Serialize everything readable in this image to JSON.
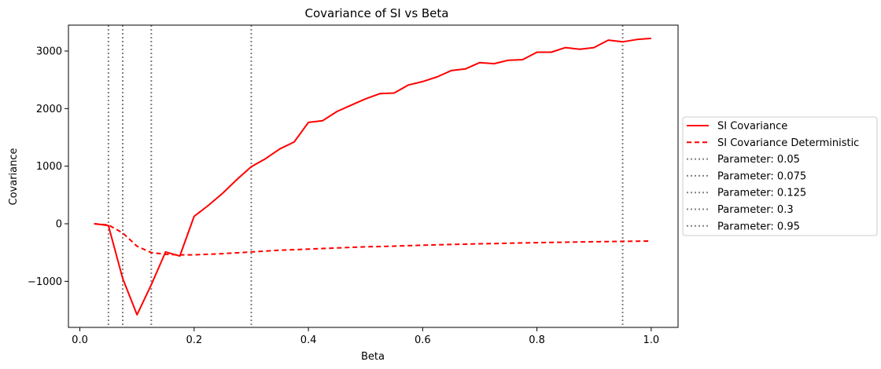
{
  "chart_data": {
    "type": "line",
    "title": "Covariance of SI vs Beta",
    "xlabel": "Beta",
    "ylabel": "Covariance",
    "xlim": [
      -0.02,
      1.047
    ],
    "ylim": [
      -1800,
      3450
    ],
    "xticks": [
      0.0,
      0.2,
      0.4,
      0.6,
      0.8,
      1.0
    ],
    "xtick_labels": [
      "0.0",
      "0.2",
      "0.4",
      "0.6",
      "0.8",
      "1.0"
    ],
    "yticks": [
      -1000,
      0,
      1000,
      2000,
      3000
    ],
    "ytick_labels": [
      "−1000",
      "0",
      "1000",
      "2000",
      "3000"
    ],
    "grid": false,
    "legend_position": "center-right outside",
    "series": [
      {
        "name": "SI Covariance",
        "style": "solid",
        "color": "#ff0000",
        "x": [
          0.025,
          0.05,
          0.075,
          0.1,
          0.125,
          0.15,
          0.175,
          0.2,
          0.225,
          0.25,
          0.275,
          0.3,
          0.325,
          0.35,
          0.375,
          0.4,
          0.425,
          0.45,
          0.475,
          0.5,
          0.525,
          0.55,
          0.575,
          0.6,
          0.625,
          0.65,
          0.675,
          0.7,
          0.725,
          0.75,
          0.775,
          0.8,
          0.825,
          0.85,
          0.875,
          0.9,
          0.925,
          0.95,
          0.975,
          1.0
        ],
        "values": [
          0,
          -30,
          -950,
          -1580,
          -1060,
          -490,
          -560,
          130,
          320,
          530,
          770,
          990,
          1130,
          1300,
          1420,
          1760,
          1790,
          1950,
          2060,
          2170,
          2260,
          2270,
          2410,
          2470,
          2550,
          2660,
          2690,
          2800,
          2780,
          2840,
          2850,
          2980,
          2980,
          3060,
          3030,
          3060,
          3190,
          3160,
          3200,
          3220
        ]
      },
      {
        "name": "SI Covariance Deterministic",
        "style": "dashed",
        "color": "#ff0000",
        "x": [
          0.025,
          0.05,
          0.075,
          0.1,
          0.125,
          0.15,
          0.175,
          0.2,
          0.225,
          0.25,
          0.275,
          0.3,
          0.325,
          0.35,
          0.375,
          0.4,
          0.425,
          0.45,
          0.475,
          0.5,
          0.525,
          0.55,
          0.575,
          0.6,
          0.625,
          0.65,
          0.675,
          0.7,
          0.725,
          0.75,
          0.775,
          0.8,
          0.825,
          0.85,
          0.875,
          0.9,
          0.925,
          0.95,
          0.975,
          1.0
        ],
        "values": [
          0,
          -20,
          -160,
          -390,
          -500,
          -530,
          -540,
          -540,
          -530,
          -520,
          -505,
          -490,
          -475,
          -460,
          -450,
          -440,
          -430,
          -420,
          -410,
          -400,
          -395,
          -388,
          -380,
          -372,
          -366,
          -360,
          -354,
          -348,
          -343,
          -338,
          -333,
          -328,
          -324,
          -320,
          -316,
          -312,
          -309,
          -306,
          -303,
          -300
        ]
      }
    ],
    "vlines": [
      {
        "name": "Parameter: 0.05",
        "x": 0.05,
        "style": "dotted",
        "color": "#808080"
      },
      {
        "name": "Parameter: 0.075",
        "x": 0.075,
        "style": "dotted",
        "color": "#808080"
      },
      {
        "name": "Parameter: 0.125",
        "x": 0.125,
        "style": "dotted",
        "color": "#808080"
      },
      {
        "name": "Parameter: 0.3",
        "x": 0.3,
        "style": "dotted",
        "color": "#808080"
      },
      {
        "name": "Parameter: 0.95",
        "x": 0.95,
        "style": "dotted",
        "color": "#808080"
      }
    ]
  }
}
